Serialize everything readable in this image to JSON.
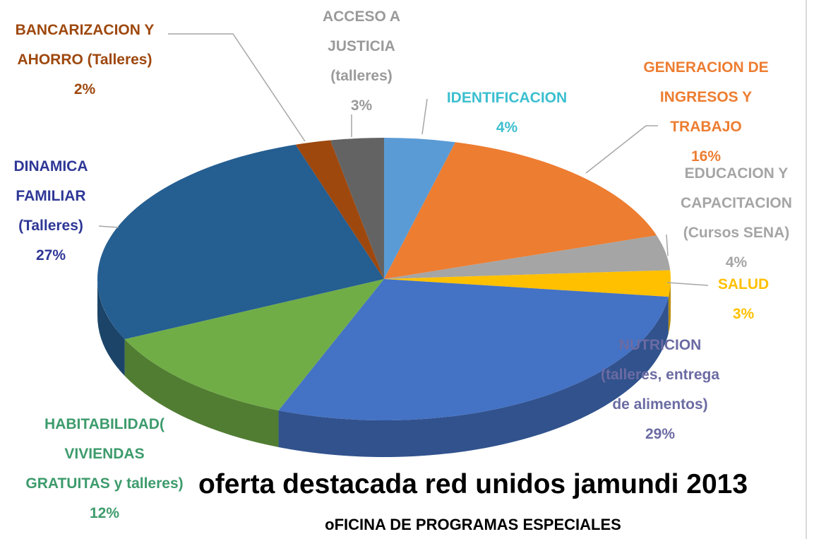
{
  "chart_data": {
    "type": "pie",
    "title": "oferta destacada red unidos jamundi 2013",
    "subtitle": "oFICINA DE PROGRAMAS ESPECIALES",
    "categories": [
      "IDENTIFICACION",
      "GENERACION DE INGRESOS Y TRABAJO",
      "EDUCACION Y CAPACITACION (Cursos SENA)",
      "SALUD",
      "NUTRICION (talleres, entrega de alimentos)",
      "HABITABILIDAD( VIVIENDAS GRATUITAS y talleres)",
      "DINAMICA FAMILIAR (Talleres)",
      "BANCARIZACION Y AHORRO (Talleres)",
      "ACCESO A JUSTICIA (talleres)"
    ],
    "values": [
      4,
      16,
      4,
      3,
      29,
      12,
      27,
      2,
      3
    ],
    "value_labels": [
      "4%",
      "16%",
      "4%",
      "3%",
      "29%",
      "12%",
      "27%",
      "2%",
      "3%"
    ],
    "colors": [
      "#5b9bd5",
      "#ed7d31",
      "#a5a5a5",
      "#ffc000",
      "#4472c4",
      "#70ad47",
      "#255e91",
      "#9e480e",
      "#636363"
    ],
    "label_colors": [
      "#3cbfcf",
      "#ed7d31",
      "#a5a5a5",
      "#ffc000",
      "#6b6ba3",
      "#3d9b6c",
      "#2e3796",
      "#9e480e",
      "#9a9a9a"
    ]
  }
}
